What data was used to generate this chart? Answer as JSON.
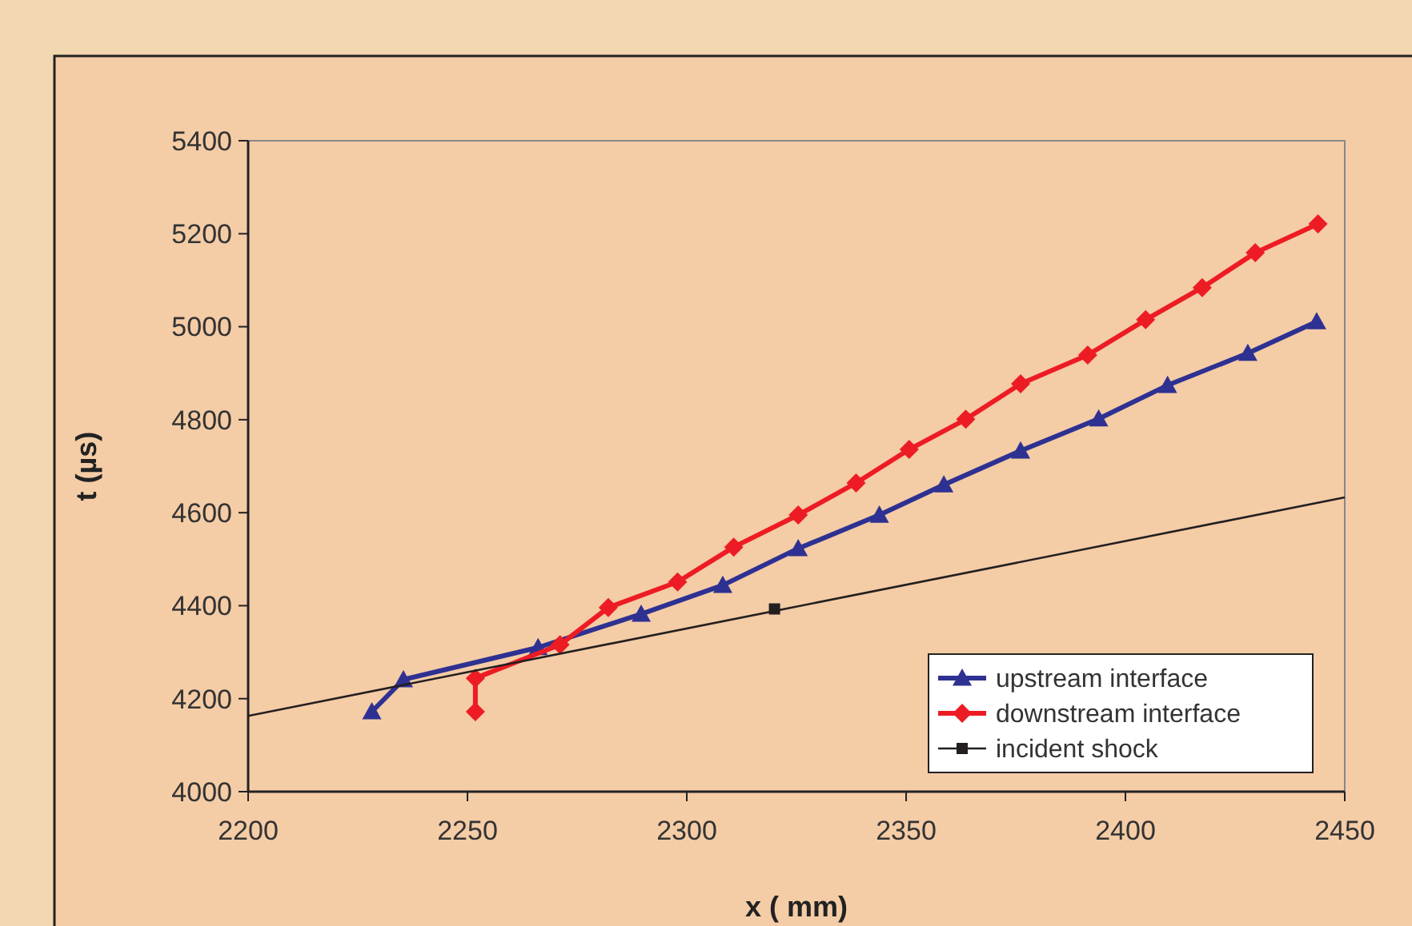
{
  "chart_data": {
    "type": "line",
    "xlabel": "x ( mm)",
    "ylabel": "t (µs)",
    "xlim": [
      2200,
      2450
    ],
    "xticks": [
      2200,
      2250,
      2300,
      2350,
      2400,
      2450
    ],
    "ylim": [
      4000,
      5400
    ],
    "yticks": [
      4000,
      4200,
      4400,
      4600,
      4800,
      5000,
      5200,
      5400
    ],
    "grid": false,
    "legend": "bottom right",
    "line_style": "solid",
    "series": [
      {
        "name": "upstream interface",
        "color": "#2e3192",
        "marker": "triangle",
        "x": [
          2228.2,
          2235.4,
          2266.1,
          2289.6,
          2308.2,
          2325.4,
          2343.9,
          2358.6,
          2376.1,
          2393.9,
          2409.6,
          2427.9,
          2443.6
        ],
        "values": [
          4172,
          4241,
          4310,
          4382,
          4444,
          4523,
          4595,
          4660,
          4733,
          4802,
          4874,
          4943,
          5011
        ]
      },
      {
        "name": "downstream interface",
        "color": "#ed1c24",
        "marker": "diamond",
        "x": [
          2251.8,
          2251.8,
          2271.1,
          2282.1,
          2297.9,
          2310.7,
          2325.4,
          2338.6,
          2350.7,
          2363.6,
          2376.1,
          2391.4,
          2404.6,
          2417.5,
          2429.6,
          2443.9
        ],
        "values": [
          4172,
          4244,
          4316,
          4396,
          4451,
          4526,
          4595,
          4664,
          4736,
          4801,
          4877,
          4939,
          5015,
          5084,
          5159,
          5221
        ]
      },
      {
        "name": "incident shock",
        "color": "#231f20",
        "marker": "square",
        "x": [
          2320
        ],
        "values": [
          4393
        ]
      },
      {
        "type": "line",
        "color": "#231f20",
        "marker": "none",
        "x": [
          2200,
          2450
        ],
        "values": [
          4163,
          4633
        ]
      }
    ]
  }
}
